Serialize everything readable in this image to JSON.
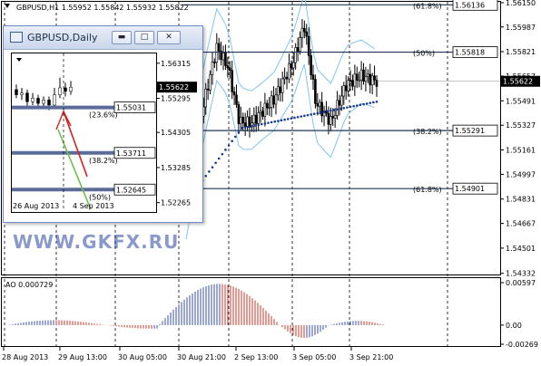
{
  "header": {
    "text": "GBPUSD,H1  1.55952 1.55842 1.55932 1.55822"
  },
  "price_axis": {
    "ticks": [
      "1.56150",
      "1.55987",
      "1.55821",
      "1.55657",
      "1.55491",
      "1.55327",
      "1.55161",
      "1.54997",
      "1.54831",
      "1.54667",
      "1.54501",
      "1.54332"
    ],
    "current_price": "1.55622"
  },
  "fibo_levels": [
    {
      "pct": "(61.8%)",
      "price": "1.56136"
    },
    {
      "pct": "(50%)",
      "price": "1.55818"
    },
    {
      "pct": "(38.2%)",
      "price": "1.55291"
    },
    {
      "pct": "(61.8%)",
      "price": "1.54901"
    }
  ],
  "indicator": {
    "label": "AO 0.000729",
    "ticks": [
      "0.00597",
      "0.00",
      "-0.00269"
    ]
  },
  "time_axis": [
    "28 Aug 2013",
    "29 Aug 13:00",
    "30 Aug 05:00",
    "30 Aug 21:00",
    "2 Sep 13:00",
    "3 Sep 05:00",
    "3 Sep 21:00"
  ],
  "inset": {
    "title": "GBPUSD,Daily",
    "price_ticks": [
      "1.56315",
      "1.55295",
      "1.54305",
      "1.53285",
      "1.52265"
    ],
    "current_price": "1.55622",
    "levels": [
      {
        "price": "1.55031",
        "pct": "(23.6%)"
      },
      {
        "price": "1.53711",
        "pct": "(38.2%)"
      },
      {
        "price": "1.52645",
        "pct": "(50%)"
      }
    ],
    "date_labels": [
      "26 Aug 2013",
      "4 Sep 2013"
    ]
  },
  "watermark": "WWW.GKFX.RU",
  "colors": {
    "bollinger": "#7fc6ee",
    "sar_dots": "#1a3a8f",
    "fibo_line": "#1f3556",
    "ao_up": "#3a4fa6",
    "ao_down": "#c0392b",
    "inset_level": "#5b6b9a",
    "inset_arrow": "#d62020",
    "inset_arrow_green": "#6cc04a",
    "watermark": "#2846a0"
  }
}
